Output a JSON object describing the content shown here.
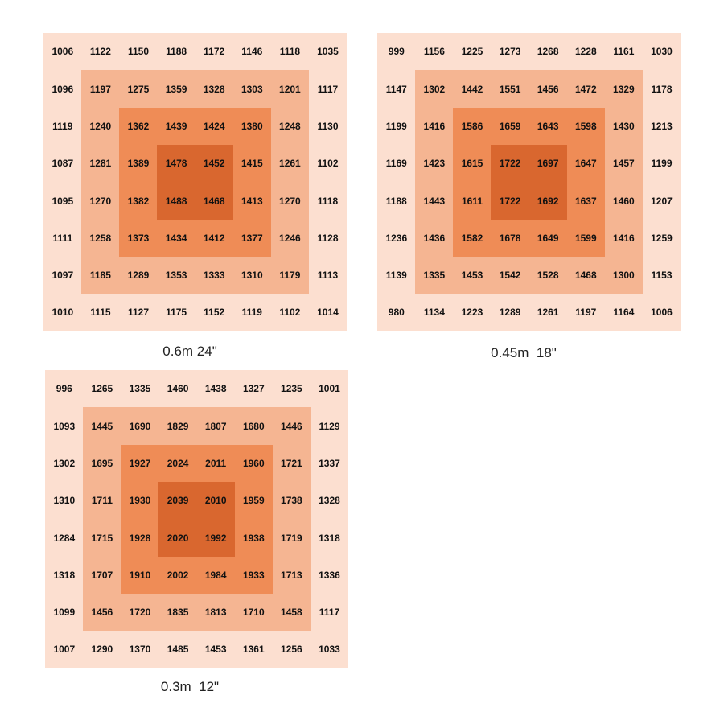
{
  "grids": [
    {
      "caption": "0.6m 24\"",
      "rows": [
        [
          1006,
          1122,
          1150,
          1188,
          1172,
          1146,
          1118,
          1035
        ],
        [
          1096,
          1197,
          1275,
          1359,
          1328,
          1303,
          1201,
          1117
        ],
        [
          1119,
          1240,
          1362,
          1439,
          1424,
          1380,
          1248,
          1130
        ],
        [
          1087,
          1281,
          1389,
          1478,
          1452,
          1415,
          1261,
          1102
        ],
        [
          1095,
          1270,
          1382,
          1488,
          1468,
          1413,
          1270,
          1118
        ],
        [
          1111,
          1258,
          1373,
          1434,
          1412,
          1377,
          1246,
          1128
        ],
        [
          1097,
          1185,
          1289,
          1353,
          1333,
          1310,
          1179,
          1113
        ],
        [
          1010,
          1115,
          1127,
          1175,
          1152,
          1119,
          1102,
          1014
        ]
      ]
    },
    {
      "caption": "0.45m  18\"",
      "rows": [
        [
          999,
          1156,
          1225,
          1273,
          1268,
          1228,
          1161,
          1030
        ],
        [
          1147,
          1302,
          1442,
          1551,
          1456,
          1472,
          1329,
          1178
        ],
        [
          1199,
          1416,
          1586,
          1659,
          1643,
          1598,
          1430,
          1213
        ],
        [
          1169,
          1423,
          1615,
          1722,
          1697,
          1647,
          1457,
          1199
        ],
        [
          1188,
          1443,
          1611,
          1722,
          1692,
          1637,
          1460,
          1207
        ],
        [
          1236,
          1436,
          1582,
          1678,
          1649,
          1599,
          1416,
          1259
        ],
        [
          1139,
          1335,
          1453,
          1542,
          1528,
          1468,
          1300,
          1153
        ],
        [
          980,
          1134,
          1223,
          1289,
          1261,
          1197,
          1164,
          1006
        ]
      ]
    },
    {
      "caption": "0.3m  12\"",
      "rows": [
        [
          996,
          1265,
          1335,
          1460,
          1438,
          1327,
          1235,
          1001
        ],
        [
          1093,
          1445,
          1690,
          1829,
          1807,
          1680,
          1446,
          1129
        ],
        [
          1302,
          1695,
          1927,
          2024,
          2011,
          1960,
          1721,
          1337
        ],
        [
          1310,
          1711,
          1930,
          2039,
          2010,
          1959,
          1738,
          1328
        ],
        [
          1284,
          1715,
          1928,
          2020,
          1992,
          1938,
          1719,
          1318
        ],
        [
          1318,
          1707,
          1910,
          2002,
          1984,
          1933,
          1713,
          1336
        ],
        [
          1099,
          1456,
          1720,
          1835,
          1813,
          1710,
          1458,
          1117
        ],
        [
          1007,
          1290,
          1370,
          1485,
          1453,
          1361,
          1256,
          1033
        ]
      ]
    }
  ]
}
